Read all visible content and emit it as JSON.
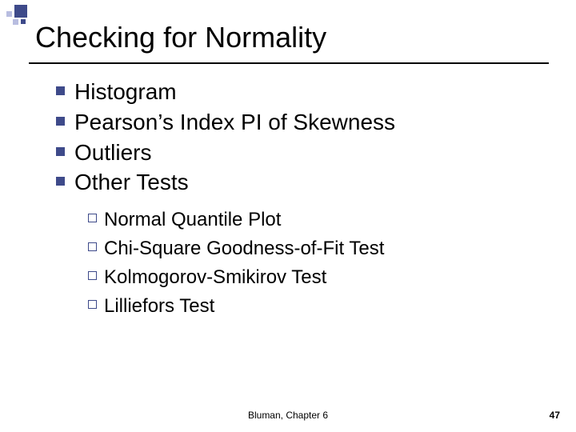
{
  "slide": {
    "title": "Checking for Normality",
    "bullets": [
      {
        "text": "Histogram"
      },
      {
        "text": "Pearson’s Index PI of Skewness"
      },
      {
        "text": "Outliers"
      },
      {
        "text": "Other Tests"
      }
    ],
    "sub_bullets": [
      {
        "text": "Normal Quantile Plot"
      },
      {
        "text": "Chi-Square Goodness-of-Fit Test"
      },
      {
        "text": "Kolmogorov-Smikirov Test"
      },
      {
        "text": "Lilliefors Test"
      }
    ],
    "footer_center": "Bluman, Chapter 6",
    "page_number": "47"
  },
  "style": {
    "accent_color": "#3e4a8a",
    "accent_light": "#b8bde0",
    "background": "#ffffff",
    "title_fontsize": 36,
    "l1_fontsize": 28,
    "l2_fontsize": 24,
    "footer_fontsize": 12,
    "l1_bullet_shape": "filled-square",
    "l2_bullet_shape": "outline-square"
  }
}
